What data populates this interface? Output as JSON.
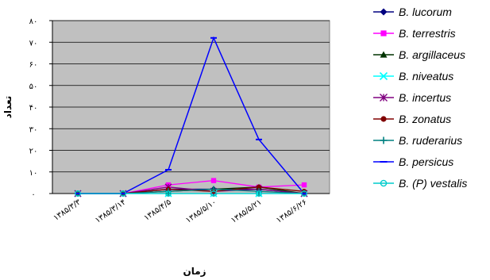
{
  "chart_data": {
    "type": "line",
    "title": "",
    "xlabel": "زمان",
    "ylabel": "تعداد",
    "categories": [
      "۱۳۸۵/۳/۳",
      "۱۳۸۵/۳/۱۴",
      "۱۳۸۵/۴/۵",
      "۱۳۸۵/۵/۱۰",
      "۱۳۸۵/۵/۲۱",
      "۱۳۸۵/۶/۲۶"
    ],
    "ylim": [
      0,
      80
    ],
    "yticks": [
      0,
      10,
      20,
      30,
      40,
      50,
      60,
      70,
      80
    ],
    "ytick_labels": [
      "۰",
      "۱۰",
      "۲۰",
      "۳۰",
      "۴۰",
      "۵۰",
      "۶۰",
      "۷۰",
      "۸۰"
    ],
    "grid": true,
    "legend_position": "right",
    "plot_background": "#c0c0c0",
    "series": [
      {
        "name": "B. lucorum",
        "color": "#000080",
        "marker": "diamond",
        "values": [
          0,
          0,
          2,
          2,
          2,
          0
        ]
      },
      {
        "name": "B. terrestris",
        "color": "#ff00ff",
        "marker": "square",
        "values": [
          0,
          0,
          4,
          6,
          3,
          4
        ]
      },
      {
        "name": "B. argillaceus",
        "color": "#003300",
        "marker": "triangle",
        "values": [
          0,
          0,
          1,
          2,
          3,
          0
        ]
      },
      {
        "name": "B. niveatus",
        "color": "#00ffff",
        "marker": "x",
        "values": [
          0,
          0,
          0,
          0,
          0,
          0
        ]
      },
      {
        "name": "B. incertus",
        "color": "#800080",
        "marker": "star",
        "values": [
          0,
          0,
          3,
          1,
          2,
          0
        ]
      },
      {
        "name": "B. zonatus",
        "color": "#800000",
        "marker": "circle",
        "values": [
          0,
          0,
          2,
          1,
          3,
          1
        ]
      },
      {
        "name": "B. ruderarius",
        "color": "#008080",
        "marker": "plus",
        "values": [
          0,
          0,
          1,
          2,
          1,
          0
        ]
      },
      {
        "name": "B. persicus",
        "color": "#0000ff",
        "marker": "dash",
        "values": [
          0,
          0,
          11,
          72,
          25,
          0
        ]
      },
      {
        "name": "B. (P) vestalis",
        "color": "#00cccc",
        "marker": "open-circle",
        "values": [
          0,
          0,
          0,
          0,
          0,
          0
        ]
      }
    ]
  }
}
